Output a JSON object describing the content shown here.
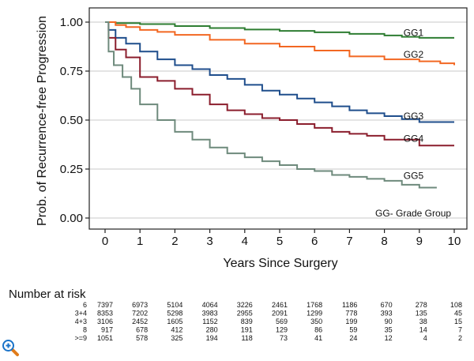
{
  "chart_data": {
    "type": "line",
    "title": "",
    "xlabel": "Years Since Surgery",
    "ylabel": "Prob. of Recurrence-free Progression",
    "xlim": [
      0,
      10
    ],
    "ylim": [
      0,
      1
    ],
    "x_ticks": [
      "0",
      "1",
      "2",
      "3",
      "4",
      "5",
      "6",
      "7",
      "8",
      "9",
      "10"
    ],
    "y_ticks": [
      "0.00",
      "0.25",
      "0.50",
      "0.75",
      "1.00"
    ],
    "grid": "horizontal",
    "note": "GG- Grade Group",
    "series": [
      {
        "name": "GG1",
        "color": "#2e7d32",
        "label_at": [
          9.0,
          0.945
        ],
        "x": [
          0,
          0.3,
          1,
          2,
          3,
          4,
          5,
          6,
          7,
          8,
          8.5,
          9,
          10
        ],
        "y": [
          1.0,
          0.995,
          0.99,
          0.98,
          0.97,
          0.962,
          0.955,
          0.948,
          0.94,
          0.932,
          0.925,
          0.92,
          0.92
        ]
      },
      {
        "name": "GG2",
        "color": "#f26722",
        "label_at": [
          9.0,
          0.835
        ],
        "x": [
          0,
          0.3,
          0.6,
          1,
          1.5,
          2,
          3,
          4,
          5,
          6,
          7,
          8,
          9,
          9.6,
          10
        ],
        "y": [
          1.0,
          0.985,
          0.975,
          0.96,
          0.95,
          0.935,
          0.91,
          0.89,
          0.875,
          0.855,
          0.825,
          0.81,
          0.8,
          0.79,
          0.78
        ]
      },
      {
        "name": "GG3",
        "color": "#1f4e8c",
        "label_at": [
          9.0,
          0.52
        ],
        "x": [
          0,
          0.1,
          0.3,
          0.6,
          1,
          1.5,
          2,
          2.5,
          3,
          3.5,
          4,
          4.5,
          5,
          5.5,
          6,
          6.5,
          7,
          7.5,
          8,
          8.5,
          9,
          10
        ],
        "y": [
          1.0,
          0.96,
          0.92,
          0.89,
          0.85,
          0.81,
          0.78,
          0.76,
          0.73,
          0.71,
          0.68,
          0.65,
          0.63,
          0.61,
          0.59,
          0.57,
          0.55,
          0.535,
          0.52,
          0.505,
          0.49,
          0.49
        ]
      },
      {
        "name": "GG4",
        "color": "#8b1e2d",
        "label_at": [
          9.0,
          0.405
        ],
        "x": [
          0,
          0.1,
          0.3,
          0.6,
          1,
          1.5,
          2,
          2.5,
          3,
          3.5,
          4,
          4.5,
          5,
          5.5,
          6,
          6.5,
          7,
          7.5,
          8,
          9,
          10
        ],
        "y": [
          1.0,
          0.92,
          0.86,
          0.82,
          0.72,
          0.7,
          0.66,
          0.63,
          0.58,
          0.55,
          0.53,
          0.51,
          0.5,
          0.48,
          0.46,
          0.44,
          0.43,
          0.42,
          0.4,
          0.37,
          0.37
        ]
      },
      {
        "name": "GG5",
        "color": "#6e8a7c",
        "label_at": [
          9.0,
          0.215
        ],
        "x": [
          0,
          0.1,
          0.25,
          0.5,
          0.75,
          1,
          1.5,
          2,
          2.5,
          3,
          3.5,
          4,
          4.5,
          5,
          5.5,
          6,
          6.5,
          7,
          7.5,
          8,
          8.5,
          9,
          9.5
        ],
        "y": [
          1.0,
          0.85,
          0.78,
          0.72,
          0.66,
          0.58,
          0.5,
          0.44,
          0.4,
          0.36,
          0.33,
          0.31,
          0.29,
          0.27,
          0.25,
          0.24,
          0.22,
          0.21,
          0.2,
          0.19,
          0.17,
          0.155,
          0.155
        ]
      }
    ],
    "risk_table": {
      "title": "Number at risk",
      "groups": [
        "6",
        "3+4",
        "4+3",
        "8",
        ">=9"
      ],
      "rows": [
        [
          "7397",
          "6973",
          "5104",
          "4064",
          "3226",
          "2461",
          "1768",
          "1186",
          "670",
          "278",
          "108"
        ],
        [
          "8353",
          "7202",
          "5298",
          "3983",
          "2955",
          "2091",
          "1299",
          "778",
          "393",
          "135",
          "45"
        ],
        [
          "3106",
          "2452",
          "1605",
          "1152",
          "839",
          "569",
          "350",
          "199",
          "90",
          "38",
          "15"
        ],
        [
          "917",
          "678",
          "412",
          "280",
          "191",
          "129",
          "86",
          "59",
          "35",
          "14",
          "7"
        ],
        [
          "1051",
          "578",
          "325",
          "194",
          "118",
          "73",
          "41",
          "24",
          "12",
          "4",
          "2"
        ]
      ]
    }
  },
  "ui": {
    "zoom_icon": "zoom-in-magnifier-icon",
    "zoom_color": "#1a73c8",
    "handle_color": "#e07b1a"
  }
}
